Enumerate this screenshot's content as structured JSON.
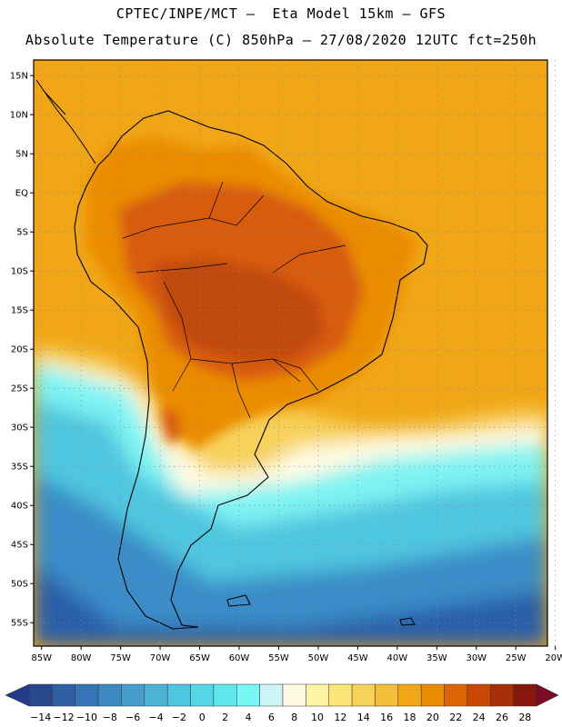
{
  "header": {
    "line1": "CPTEC/INPE/MCT –  Eta Model 15km – GFS",
    "line2": "Absolute Temperature (C) 850hPa – 27/08/2020 12UTC fct=250h"
  },
  "map": {
    "lat_ticks": [
      "15N",
      "10N",
      "5N",
      "EQ",
      "5S",
      "10S",
      "15S",
      "20S",
      "25S",
      "30S",
      "35S",
      "40S",
      "45S",
      "50S",
      "55S"
    ],
    "lon_ticks": [
      "85W",
      "80W",
      "75W",
      "70W",
      "65W",
      "60W",
      "55W",
      "50W",
      "45W",
      "40W",
      "35W",
      "30W",
      "25W",
      "20W"
    ],
    "lat_range": [
      17,
      -58
    ],
    "lon_range": [
      -86,
      -21
    ]
  },
  "colorbar": {
    "labels": [
      "-14",
      "-12",
      "-10",
      "-8",
      "-6",
      "-4",
      "-2",
      "0",
      "2",
      "4",
      "6",
      "8",
      "10",
      "12",
      "14",
      "16",
      "18",
      "20",
      "22",
      "24",
      "26",
      "28"
    ],
    "under_color": "#243a8a",
    "over_color": "#7a0a26",
    "colors": [
      "#27488f",
      "#2f5fa5",
      "#3574b5",
      "#3d87c3",
      "#469dcc",
      "#4cb2d6",
      "#4fc6df",
      "#55d7e8",
      "#5ee8ee",
      "#77f8f5",
      "#cdf4f9",
      "#fffbe3",
      "#fff5a4",
      "#fbe478",
      "#f7d25a",
      "#f4bd3a",
      "#f0a616",
      "#eb8c06",
      "#df6405",
      "#c84704",
      "#a52f06",
      "#86170a"
    ]
  },
  "field_colors": {
    "deep_ocean": "#2a5ea8",
    "cold_ocean": "#3a8cc8",
    "cool_ocean": "#4fc6df",
    "cold_front": "#7ef3f3",
    "pale": "#fffbe3",
    "yellow": "#f7d25a",
    "tropical_sea": "#f0a616",
    "warm": "#eb8c06",
    "hot": "#d85c0c",
    "hotter": "#c04808",
    "coast": "#000000"
  }
}
